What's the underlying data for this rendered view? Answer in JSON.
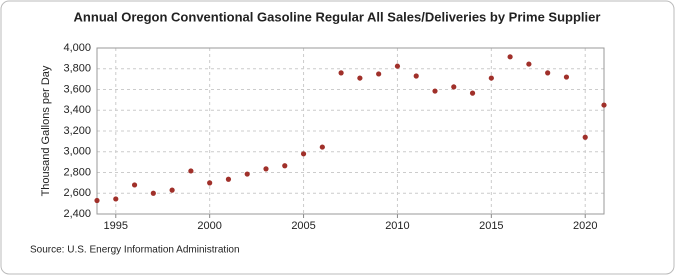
{
  "chart_data": {
    "type": "scatter",
    "title": "Annual Oregon Conventional Gasoline Regular All Sales/Deliveries by Prime Supplier",
    "y_label": "Thousand Gallons per Day",
    "source": "Source: U.S. Energy Information Administration",
    "color": "#a0302a",
    "grid": true,
    "x": [
      1994,
      1995,
      1996,
      1997,
      1998,
      1999,
      2000,
      2001,
      2002,
      2003,
      2004,
      2005,
      2006,
      2007,
      2008,
      2009,
      2010,
      2011,
      2012,
      2013,
      2014,
      2015,
      2016,
      2017,
      2018,
      2019,
      2020,
      2021
    ],
    "values": [
      2530,
      2545,
      2680,
      2600,
      2630,
      2815,
      2700,
      2735,
      2785,
      2835,
      2865,
      2980,
      3045,
      3760,
      3710,
      3750,
      3825,
      3730,
      3585,
      3625,
      3565,
      3710,
      3915,
      3845,
      3760,
      3720,
      3140,
      3450
    ],
    "xlim": [
      1994,
      2021
    ],
    "xticks": [
      1995,
      2000,
      2005,
      2010,
      2015,
      2020
    ],
    "ylim": [
      2400,
      4000
    ],
    "yticks": [
      {
        "value": 2400,
        "label": "2,400"
      },
      {
        "value": 2600,
        "label": "2,600"
      },
      {
        "value": 2800,
        "label": "2,800"
      },
      {
        "value": 3000,
        "label": "3,000"
      },
      {
        "value": 3200,
        "label": "3,200"
      },
      {
        "value": 3400,
        "label": "3,400"
      },
      {
        "value": 3600,
        "label": "3,600"
      },
      {
        "value": 3800,
        "label": "3,800"
      },
      {
        "value": 4000,
        "label": "4,000"
      }
    ]
  }
}
